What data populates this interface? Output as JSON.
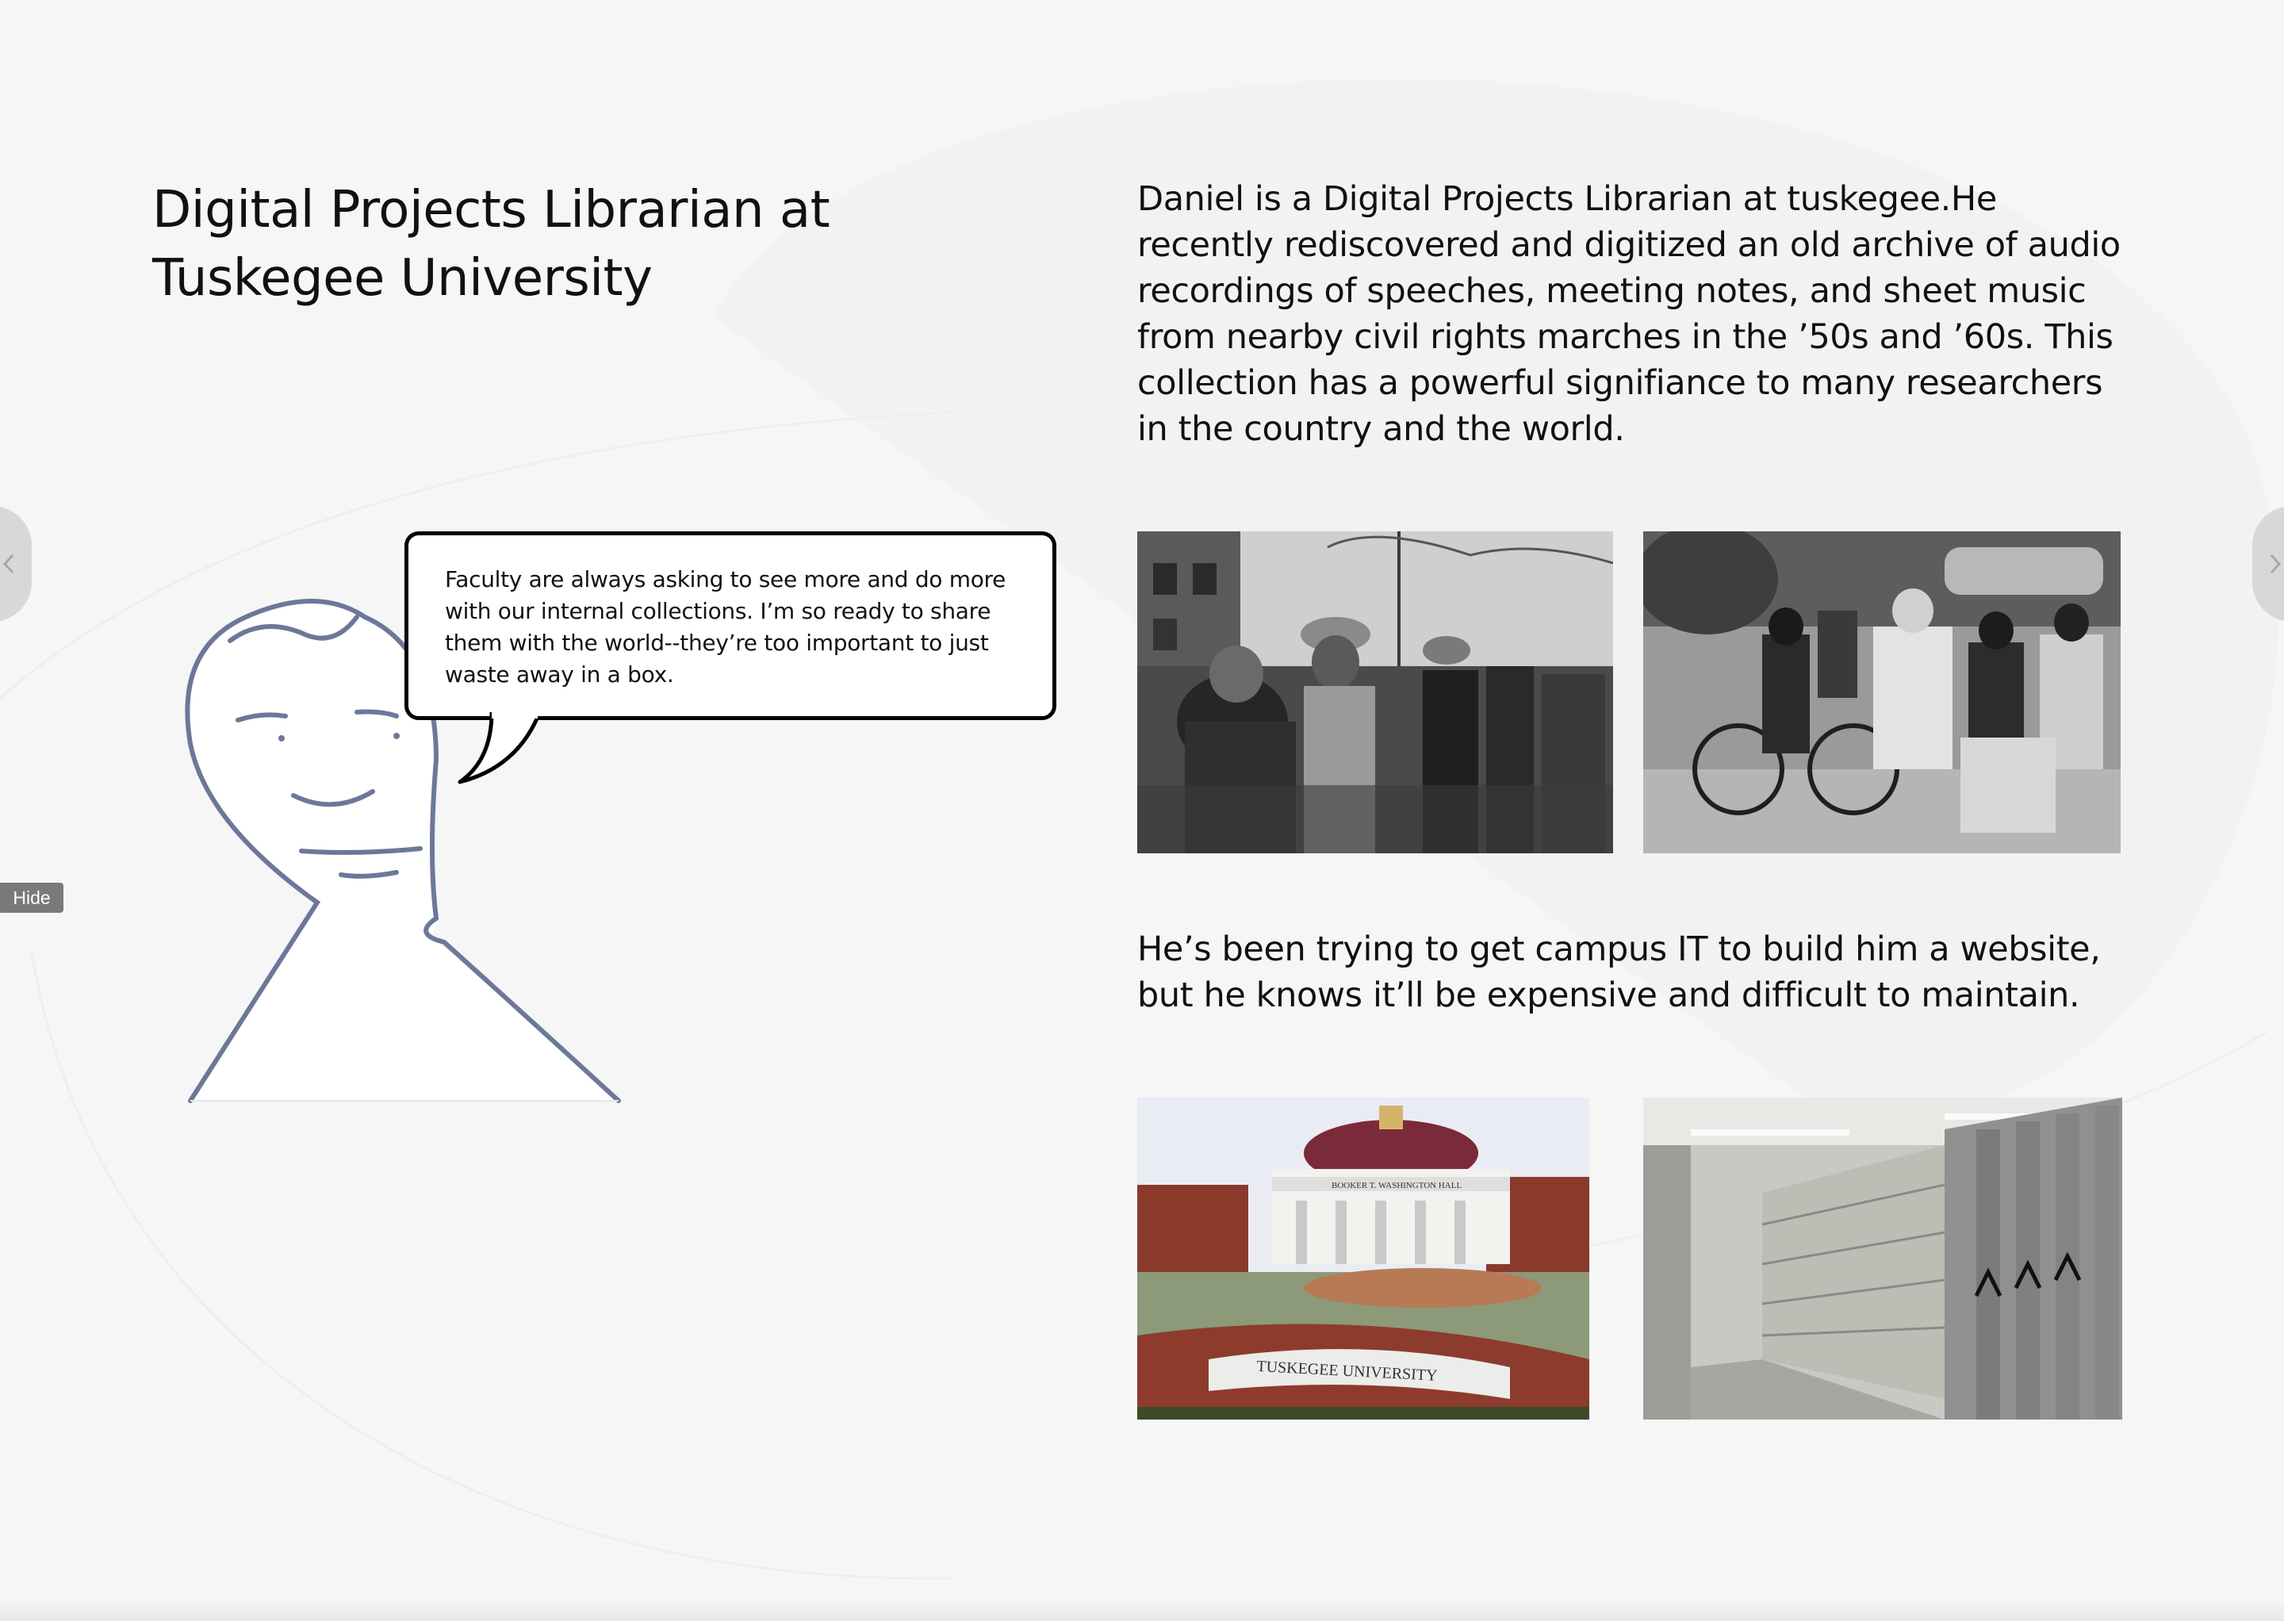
{
  "slide": {
    "title": "Digital Projects Librarian at Tuskegee University",
    "intro": "Daniel is a Digital Projects Librarian at tuskegee.He  recently rediscovered and digitized an old archive of audio recordings of speeches, meeting notes, and sheet music from nearby civil rights marches in the ’50s and ’60s.  This collection has a powerful signifiance to many researchers in the country and the world.",
    "second": "He’s been trying to get campus IT to build him a website, but he knows it’ll be expensive and difficult to maintain.",
    "speech_bubble": "Faculty are always asking to see more and do more with our internal collections. I’m so ready to share them with the world--they’re too important to just waste away in a box.",
    "photos": [
      {
        "name": "civil-rights-march-photo",
        "caption": ""
      },
      {
        "name": "children-reading-photo",
        "caption": ""
      },
      {
        "name": "tuskegee-campus-photo",
        "sign_text": "TUSKEGEE UNIVERSITY",
        "building_text": "BOOKER T. WASHINGTON HALL"
      },
      {
        "name": "archive-shelving-photo",
        "caption": ""
      }
    ]
  },
  "controls": {
    "hide_label": "Hide",
    "prev_icon": "chevron-left-icon",
    "next_icon": "chevron-right-icon"
  },
  "colors": {
    "background": "#f6f6f6",
    "character_stroke": "#6c7899",
    "bubble_border": "#000000",
    "hide_button": "#7a7a7a"
  }
}
